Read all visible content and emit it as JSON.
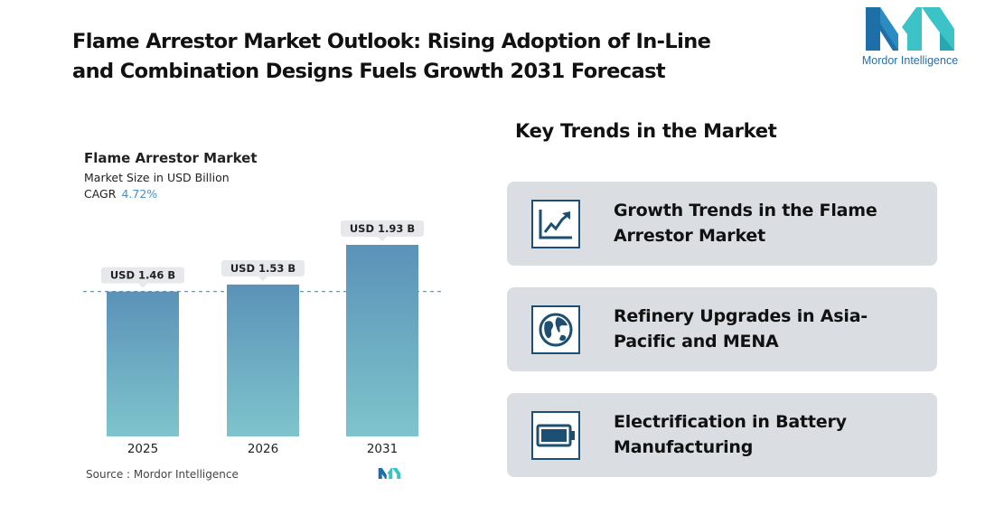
{
  "headline": {
    "line1": "Flame Arrestor Market Outlook: Rising Adoption of In-Line",
    "line2": "and Combination Designs Fuels Growth 2031 Forecast"
  },
  "brand": {
    "name": "Mordor Intelligence",
    "colors": {
      "dark": "#1e6fa8",
      "teal": "#3cc3c8"
    }
  },
  "chart_panel": {
    "title": "Flame Arrestor Market",
    "subtitle": "Market Size in USD Billion",
    "cagr_label": "CAGR",
    "cagr_value": "4.72%",
    "source": "Source :  Mordor Intelligence"
  },
  "chart_data": {
    "type": "bar",
    "title": "Flame Arrestor Market",
    "ylabel": "Market Size in USD Billion",
    "categories": [
      "2025",
      "2026",
      "2031"
    ],
    "values": [
      1.46,
      1.53,
      1.93
    ],
    "data_labels": [
      "USD 1.46 B",
      "USD 1.53 B",
      "USD 1.93 B"
    ],
    "reference_line": 1.46,
    "grid": false,
    "legend": "none",
    "colors": {
      "bar_top": "#5b92b8",
      "bar_bottom": "#7ec4cc",
      "reference_line": "#6c93ad",
      "label_bg": "#e6e8eb"
    }
  },
  "trends": {
    "heading": "Key Trends in the Market",
    "items": [
      {
        "icon": "growth-chart-icon",
        "line1": "Growth Trends in the Flame",
        "line2": "Arrestor Market"
      },
      {
        "icon": "globe-icon",
        "line1": "Refinery Upgrades in Asia-",
        "line2": "Pacific and MENA"
      },
      {
        "icon": "battery-icon",
        "line1": "Electrification in Battery",
        "line2": "Manufacturing"
      }
    ],
    "colors": {
      "card_bg": "#dadde2",
      "icon": "#1d4f72"
    }
  }
}
